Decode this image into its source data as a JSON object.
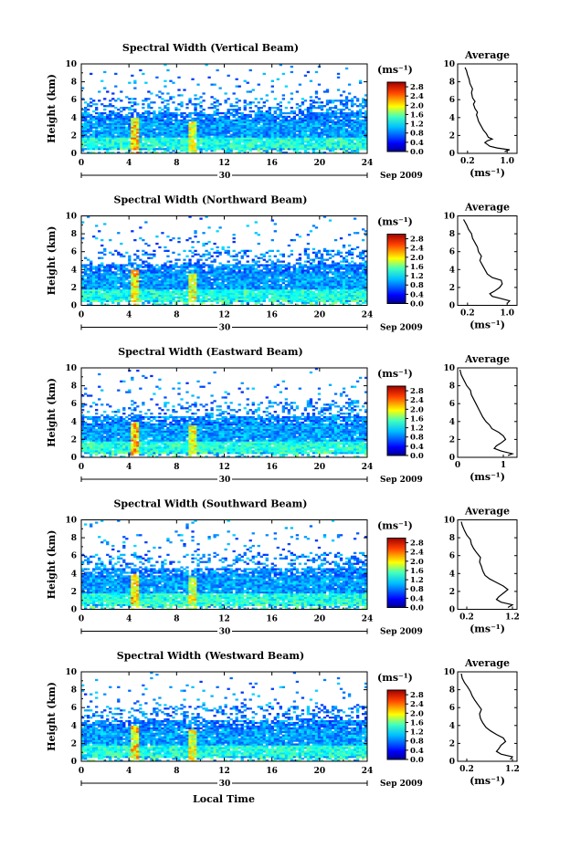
{
  "figure": {
    "bottom_label": "Local Time"
  },
  "chart_data": [
    {
      "type": "heatmap",
      "title": "Spectral Width (Vertical Beam)",
      "ylabel": "Height (km)",
      "ylim": [
        0,
        10
      ],
      "y_ticks": [
        0,
        2,
        4,
        6,
        8,
        10
      ],
      "xlim": [
        0,
        24
      ],
      "x_ticks": [
        0,
        4,
        8,
        12,
        16,
        20,
        24
      ],
      "date_day": "30",
      "date_month_year": "Sep 2009",
      "colorbar": {
        "unit": "(ms⁻¹)",
        "ticks": [
          0.0,
          0.4,
          0.8,
          1.2,
          1.6,
          2.0,
          2.4,
          2.8
        ],
        "tick_labels": [
          "0.0",
          "0.4",
          "0.8",
          "1.2",
          "1.6",
          "2.0",
          "2.4",
          "2.8"
        ],
        "range": [
          0,
          3.0
        ]
      },
      "average": {
        "title": "Average",
        "xlabel": "(ms⁻¹)",
        "xlim": [
          0,
          1.2
        ],
        "x_ticks": [
          0.2,
          1.0
        ],
        "x_tick_labels": [
          "0.2",
          "1.0"
        ],
        "ylim": [
          0,
          10
        ],
        "y_ticks": [
          0,
          2,
          4,
          6,
          8,
          10
        ],
        "profile": [
          [
            0.95,
            0.2
          ],
          [
            1.05,
            0.4
          ],
          [
            0.8,
            0.6
          ],
          [
            0.65,
            0.8
          ],
          [
            0.6,
            1.0
          ],
          [
            0.55,
            1.2
          ],
          [
            0.6,
            1.4
          ],
          [
            0.7,
            1.6
          ],
          [
            0.62,
            1.8
          ],
          [
            0.6,
            2.0
          ],
          [
            0.58,
            2.2
          ],
          [
            0.55,
            2.4
          ],
          [
            0.52,
            2.6
          ],
          [
            0.5,
            2.8
          ],
          [
            0.48,
            3.0
          ],
          [
            0.45,
            3.3
          ],
          [
            0.42,
            3.6
          ],
          [
            0.4,
            4.0
          ],
          [
            0.38,
            4.3
          ],
          [
            0.4,
            4.6
          ],
          [
            0.35,
            5.0
          ],
          [
            0.32,
            5.5
          ],
          [
            0.35,
            5.8
          ],
          [
            0.3,
            6.2
          ],
          [
            0.28,
            6.8
          ],
          [
            0.3,
            7.2
          ],
          [
            0.25,
            7.8
          ],
          [
            0.23,
            8.3
          ],
          [
            0.2,
            8.8
          ],
          [
            0.18,
            9.2
          ],
          [
            0.15,
            9.6
          ]
        ]
      }
    },
    {
      "type": "heatmap",
      "title": "Spectral Width (Northward Beam)",
      "ylabel": "Height (km)",
      "ylim": [
        0,
        10
      ],
      "y_ticks": [
        0,
        2,
        4,
        6,
        8,
        10
      ],
      "xlim": [
        0,
        24
      ],
      "x_ticks": [
        0,
        4,
        8,
        12,
        16,
        20,
        24
      ],
      "date_day": "30",
      "date_month_year": "Sep 2009",
      "colorbar": {
        "unit": "(ms⁻¹)",
        "ticks": [
          0.0,
          0.4,
          0.8,
          1.2,
          1.6,
          2.0,
          2.4,
          2.8
        ],
        "tick_labels": [
          "0.0",
          "0.4",
          "0.8",
          "1.2",
          "1.6",
          "2.0",
          "2.4",
          "2.8"
        ],
        "range": [
          0,
          3.0
        ]
      },
      "average": {
        "title": "Average",
        "xlabel": "(ms⁻¹)",
        "xlim": [
          0,
          1.2
        ],
        "x_ticks": [
          0.2,
          1.0
        ],
        "x_tick_labels": [
          "0.2",
          "1.0"
        ],
        "ylim": [
          0,
          10
        ],
        "y_ticks": [
          0,
          2,
          4,
          6,
          8,
          10
        ],
        "profile": [
          [
            1.0,
            0.2
          ],
          [
            1.05,
            0.5
          ],
          [
            0.85,
            0.8
          ],
          [
            0.7,
            1.0
          ],
          [
            0.65,
            1.3
          ],
          [
            0.75,
            1.6
          ],
          [
            0.85,
            2.0
          ],
          [
            0.9,
            2.4
          ],
          [
            0.88,
            2.8
          ],
          [
            0.7,
            3.1
          ],
          [
            0.6,
            3.5
          ],
          [
            0.55,
            4.0
          ],
          [
            0.5,
            4.5
          ],
          [
            0.45,
            5.0
          ],
          [
            0.48,
            5.5
          ],
          [
            0.42,
            6.0
          ],
          [
            0.4,
            6.5
          ],
          [
            0.35,
            7.0
          ],
          [
            0.3,
            7.5
          ],
          [
            0.28,
            8.0
          ],
          [
            0.22,
            8.5
          ],
          [
            0.18,
            9.0
          ],
          [
            0.12,
            9.6
          ]
        ]
      }
    },
    {
      "type": "heatmap",
      "title": "Spectral Width (Eastward Beam)",
      "ylabel": "Height (km)",
      "ylim": [
        0,
        10
      ],
      "y_ticks": [
        0,
        2,
        4,
        6,
        8,
        10
      ],
      "xlim": [
        0,
        24
      ],
      "x_ticks": [
        0,
        4,
        8,
        12,
        16,
        20,
        24
      ],
      "date_day": "30",
      "date_month_year": "Sep 2009",
      "colorbar": {
        "unit": "(ms⁻¹)",
        "ticks": [
          0.0,
          0.4,
          0.8,
          1.2,
          1.6,
          2.0,
          2.4,
          2.8
        ],
        "tick_labels": [
          "0.0",
          "0.4",
          "0.8",
          "1.2",
          "1.6",
          "2.0",
          "2.4",
          "2.8"
        ],
        "range": [
          0,
          3.0
        ]
      },
      "average": {
        "title": "Average",
        "xlabel": "(ms⁻¹)",
        "xlim": [
          0,
          1.3
        ],
        "x_ticks": [
          0,
          1
        ],
        "x_tick_labels": [
          "0",
          "1"
        ],
        "ylim": [
          0,
          10
        ],
        "y_ticks": [
          0,
          2,
          4,
          6,
          8,
          10
        ],
        "profile": [
          [
            1.1,
            0.2
          ],
          [
            1.2,
            0.4
          ],
          [
            0.95,
            0.7
          ],
          [
            0.8,
            1.0
          ],
          [
            0.85,
            1.3
          ],
          [
            0.95,
            1.6
          ],
          [
            1.05,
            2.0
          ],
          [
            1.0,
            2.4
          ],
          [
            0.9,
            2.8
          ],
          [
            0.75,
            3.2
          ],
          [
            0.7,
            3.6
          ],
          [
            0.62,
            4.0
          ],
          [
            0.55,
            4.5
          ],
          [
            0.5,
            5.0
          ],
          [
            0.45,
            5.5
          ],
          [
            0.4,
            6.0
          ],
          [
            0.35,
            6.5
          ],
          [
            0.3,
            7.0
          ],
          [
            0.28,
            7.5
          ],
          [
            0.2,
            8.0
          ],
          [
            0.15,
            8.5
          ],
          [
            0.08,
            9.2
          ],
          [
            0.05,
            9.8
          ]
        ]
      }
    },
    {
      "type": "heatmap",
      "title": "Spectral Width (Southward Beam)",
      "ylabel": "Height (km)",
      "ylim": [
        0,
        10
      ],
      "y_ticks": [
        0,
        2,
        4,
        6,
        8,
        10
      ],
      "xlim": [
        0,
        24
      ],
      "x_ticks": [
        0,
        4,
        8,
        12,
        16,
        20,
        24
      ],
      "date_day": "30",
      "date_month_year": "Sep 2009",
      "colorbar": {
        "unit": "(ms⁻¹)",
        "ticks": [
          0.0,
          0.4,
          0.8,
          1.2,
          1.6,
          2.0,
          2.4,
          2.8
        ],
        "tick_labels": [
          "0.0",
          "0.4",
          "0.8",
          "1.2",
          "1.6",
          "2.0",
          "2.4",
          "2.8"
        ],
        "range": [
          0,
          3.0
        ]
      },
      "average": {
        "title": "Average",
        "xlabel": "(ms⁻¹)",
        "xlim": [
          0,
          1.3
        ],
        "x_ticks": [
          0.2,
          1.2
        ],
        "x_tick_labels": [
          "0.2",
          "1.2"
        ],
        "ylim": [
          0,
          10
        ],
        "y_ticks": [
          0,
          2,
          4,
          6,
          8,
          10
        ],
        "profile": [
          [
            1.1,
            0.2
          ],
          [
            1.2,
            0.5
          ],
          [
            0.95,
            0.8
          ],
          [
            0.85,
            1.1
          ],
          [
            0.9,
            1.4
          ],
          [
            1.0,
            1.8
          ],
          [
            1.1,
            2.2
          ],
          [
            1.0,
            2.6
          ],
          [
            0.85,
            3.0
          ],
          [
            0.7,
            3.4
          ],
          [
            0.6,
            3.8
          ],
          [
            0.55,
            4.3
          ],
          [
            0.52,
            4.8
          ],
          [
            0.48,
            5.3
          ],
          [
            0.5,
            5.8
          ],
          [
            0.42,
            6.3
          ],
          [
            0.35,
            6.8
          ],
          [
            0.3,
            7.3
          ],
          [
            0.28,
            7.8
          ],
          [
            0.2,
            8.3
          ],
          [
            0.15,
            8.8
          ],
          [
            0.1,
            9.4
          ],
          [
            0.08,
            9.8
          ]
        ]
      }
    },
    {
      "type": "heatmap",
      "title": "Spectral Width (Westward Beam)",
      "ylabel": "Height (km)",
      "ylim": [
        0,
        10
      ],
      "y_ticks": [
        0,
        2,
        4,
        6,
        8,
        10
      ],
      "xlim": [
        0,
        24
      ],
      "x_ticks": [
        0,
        4,
        8,
        12,
        16,
        20,
        24
      ],
      "date_day": "30",
      "date_month_year": "Sep 2009",
      "colorbar": {
        "unit": "(ms⁻¹)",
        "ticks": [
          0.0,
          0.4,
          0.8,
          1.2,
          1.6,
          2.0,
          2.4,
          2.8
        ],
        "tick_labels": [
          "0.0",
          "0.4",
          "0.8",
          "1.2",
          "1.6",
          "2.0",
          "2.4",
          "2.8"
        ],
        "range": [
          0,
          3.0
        ]
      },
      "average": {
        "title": "Average",
        "xlabel": "(ms⁻¹)",
        "xlim": [
          0,
          1.3
        ],
        "x_ticks": [
          0.2,
          1.2
        ],
        "x_tick_labels": [
          "0.2",
          "1.2"
        ],
        "ylim": [
          0,
          10
        ],
        "y_ticks": [
          0,
          2,
          4,
          6,
          8,
          10
        ],
        "profile": [
          [
            1.15,
            0.2
          ],
          [
            1.2,
            0.5
          ],
          [
            0.95,
            0.8
          ],
          [
            0.85,
            1.1
          ],
          [
            0.9,
            1.4
          ],
          [
            0.95,
            1.8
          ],
          [
            1.05,
            2.2
          ],
          [
            1.0,
            2.6
          ],
          [
            0.85,
            3.0
          ],
          [
            0.72,
            3.4
          ],
          [
            0.62,
            3.8
          ],
          [
            0.55,
            4.3
          ],
          [
            0.5,
            4.8
          ],
          [
            0.48,
            5.3
          ],
          [
            0.52,
            5.8
          ],
          [
            0.45,
            6.3
          ],
          [
            0.38,
            6.8
          ],
          [
            0.32,
            7.3
          ],
          [
            0.28,
            7.8
          ],
          [
            0.22,
            8.3
          ],
          [
            0.15,
            8.8
          ],
          [
            0.1,
            9.3
          ],
          [
            0.08,
            9.8
          ]
        ]
      }
    }
  ]
}
